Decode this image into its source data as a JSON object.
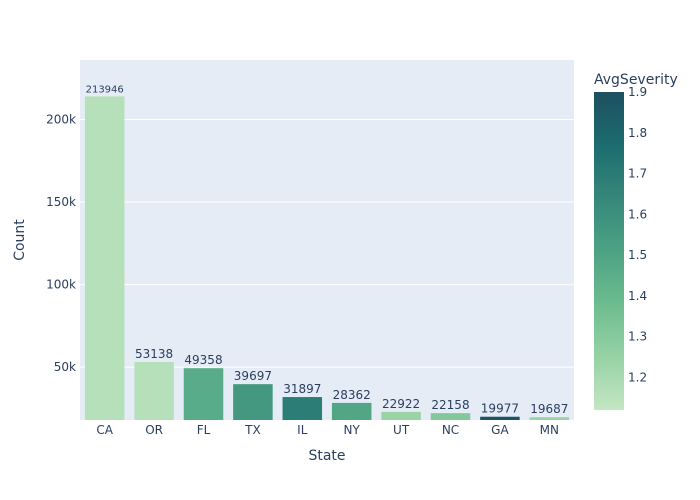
{
  "chart_data": {
    "type": "bar",
    "xlabel": "State",
    "ylabel": "Count",
    "categories": [
      "CA",
      "OR",
      "FL",
      "TX",
      "IL",
      "NY",
      "UT",
      "NC",
      "GA",
      "MN"
    ],
    "values": [
      213946,
      53138,
      49358,
      39697,
      31897,
      28362,
      22922,
      22158,
      19977,
      19687
    ],
    "value_labels": [
      "213946",
      "53138",
      "49358",
      "39697",
      "31897",
      "28362",
      "22922",
      "22158",
      "19977",
      "19687"
    ],
    "avg_severity": [
      1.16,
      1.16,
      1.46,
      1.56,
      1.69,
      1.49,
      1.24,
      1.31,
      1.88,
      1.24
    ],
    "ylim": [
      18000,
      236000
    ],
    "y_ticks": [
      50000,
      100000,
      150000,
      200000
    ],
    "y_tick_labels": [
      "50k",
      "100k",
      "150k",
      "200k"
    ],
    "grid": true,
    "colorbar": {
      "title": "AvgSeverity",
      "range": [
        1.12,
        1.9
      ],
      "ticks": [
        1.2,
        1.3,
        1.4,
        1.5,
        1.6,
        1.7,
        1.8,
        1.9
      ],
      "tick_labels": [
        "1.2",
        "1.3",
        "1.4",
        "1.5",
        "1.6",
        "1.7",
        "1.8",
        "1.9"
      ],
      "colorscale": [
        "#c4e6c3",
        "#96d2a4",
        "#6dbc90",
        "#4da284",
        "#36877a",
        "#1d6c6f",
        "#1d4f60"
      ]
    },
    "colors": {
      "plot_bg": "#e5ecf6",
      "grid": "#ffffff",
      "text": "#2a3f5f"
    }
  }
}
